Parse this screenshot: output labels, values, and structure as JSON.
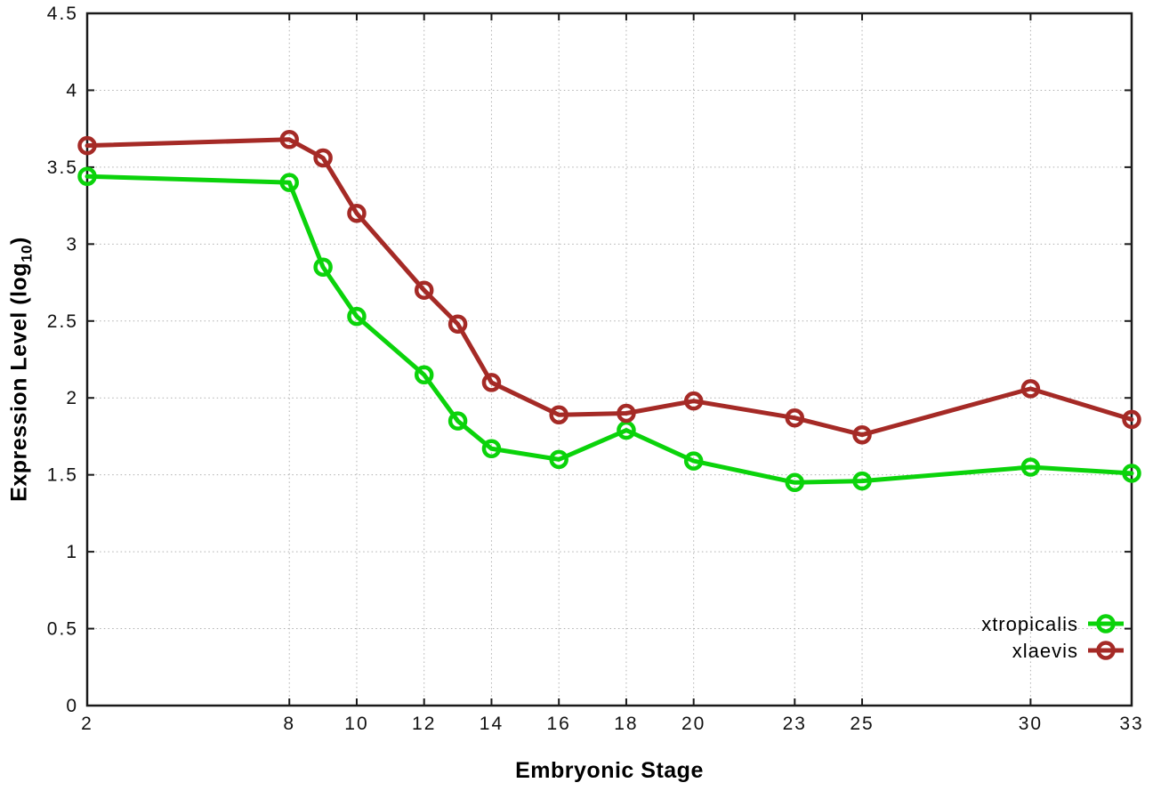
{
  "chart_data": {
    "type": "line",
    "title": "",
    "xlabel": "Embryonic Stage",
    "ylabel": "Expression Level (log10)",
    "ylabel_parts": {
      "main": "Expression Level (log",
      "sub": "10",
      "close": ")"
    },
    "xlim": [
      2,
      33
    ],
    "ylim": [
      0,
      4.5
    ],
    "grid": true,
    "legend_position": "inside-bottom-right",
    "x": [
      2,
      8,
      9,
      10,
      12,
      13,
      14,
      16,
      18,
      20,
      23,
      25,
      30,
      33
    ],
    "xticks": {
      "values": [
        2,
        8,
        10,
        12,
        14,
        16,
        18,
        20,
        23,
        25,
        30,
        33
      ],
      "labels": [
        "2",
        "8",
        "10",
        "12",
        "14",
        "16",
        "18",
        "20",
        "23",
        "25",
        "30",
        "33"
      ]
    },
    "yticks": {
      "values": [
        0,
        0.5,
        1,
        1.5,
        2,
        2.5,
        3,
        3.5,
        4,
        4.5
      ],
      "labels": [
        "0",
        "0.5",
        "1",
        "1.5",
        "2",
        "2.5",
        "3",
        "3.5",
        "4",
        "4.5"
      ]
    },
    "series": [
      {
        "name": "xtropicalis",
        "color": "#0bd30b",
        "marker": "open-circle",
        "values": [
          3.44,
          3.4,
          2.85,
          2.53,
          2.15,
          1.85,
          1.67,
          1.6,
          1.79,
          1.59,
          1.45,
          1.46,
          1.55,
          1.51
        ]
      },
      {
        "name": "xlaevis",
        "color": "#a52a26",
        "marker": "open-circle",
        "values": [
          3.64,
          3.68,
          3.56,
          3.2,
          2.7,
          2.48,
          2.1,
          1.89,
          1.9,
          1.98,
          1.87,
          1.76,
          2.06,
          1.86
        ]
      }
    ],
    "colors": {
      "axis": "#1a1a1a",
      "grid": "#b0b0b0",
      "text": "#111111",
      "background": "#ffffff"
    }
  }
}
